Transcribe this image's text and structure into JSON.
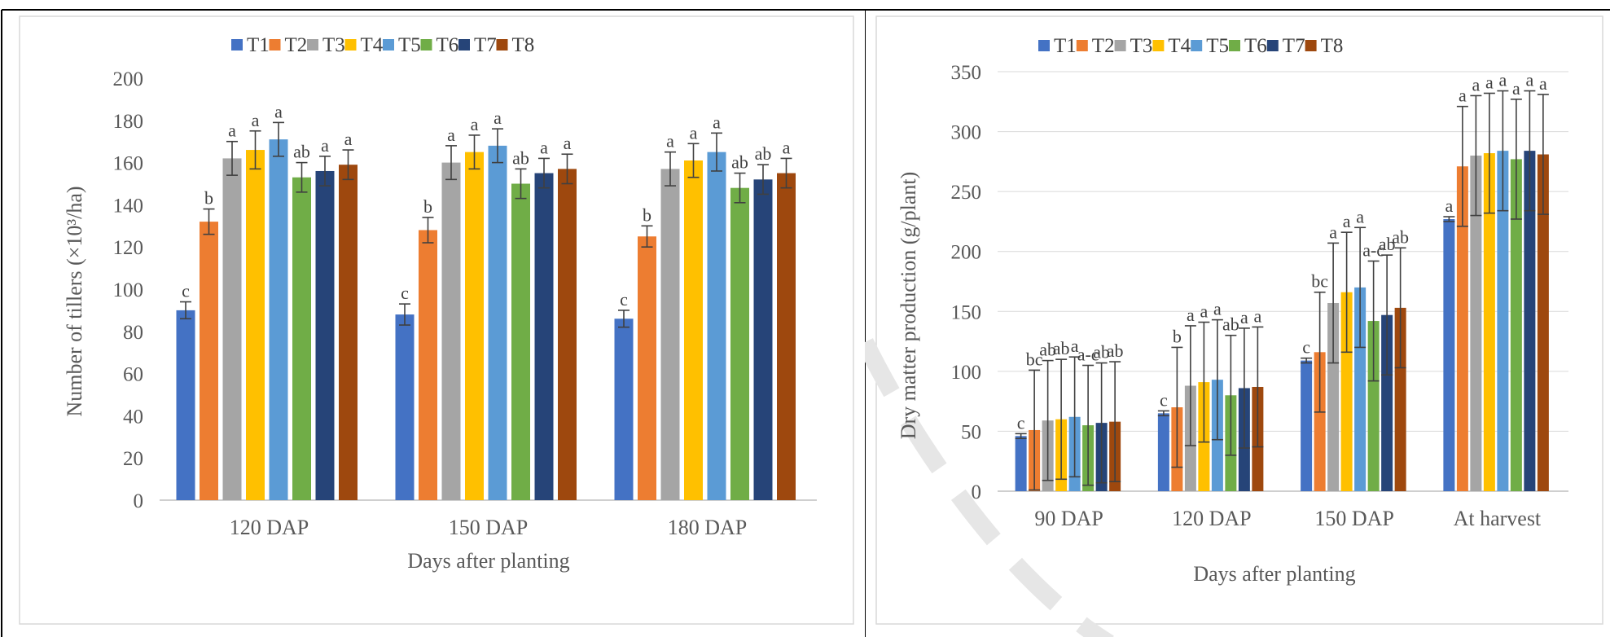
{
  "chart_data": [
    {
      "type": "bar",
      "title": "",
      "categories": [
        "120 DAP",
        "150 DAP",
        "180 DAP"
      ],
      "xlabel": "Days after planting",
      "ylabel": "Number of tillers (×10³/ha)",
      "ylim": [
        0,
        200
      ],
      "yticks": [
        "0",
        "20",
        "40",
        "60",
        "80",
        "100",
        "120",
        "140",
        "160",
        "180",
        "200"
      ],
      "grid": false,
      "legend": "top",
      "series": [
        {
          "name": "T1",
          "color": "#4472c4",
          "values": [
            90,
            88,
            86
          ],
          "errors": [
            4,
            5,
            4
          ],
          "labels": [
            "c",
            "c",
            "c"
          ]
        },
        {
          "name": "T2",
          "color": "#ed7d31",
          "values": [
            132,
            128,
            125
          ],
          "errors": [
            6,
            6,
            5
          ],
          "labels": [
            "b",
            "b",
            "b"
          ]
        },
        {
          "name": "T3",
          "color": "#a5a5a5",
          "values": [
            162,
            160,
            157
          ],
          "errors": [
            8,
            8,
            8
          ],
          "labels": [
            "a",
            "a",
            "a"
          ]
        },
        {
          "name": "T4",
          "color": "#ffc000",
          "values": [
            166,
            165,
            161
          ],
          "errors": [
            9,
            8,
            8
          ],
          "labels": [
            "a",
            "a",
            "a"
          ]
        },
        {
          "name": "T5",
          "color": "#5b9bd5",
          "values": [
            171,
            168,
            165
          ],
          "errors": [
            8,
            8,
            9
          ],
          "labels": [
            "a",
            "a",
            "a"
          ]
        },
        {
          "name": "T6",
          "color": "#70ad47",
          "values": [
            153,
            150,
            148
          ],
          "errors": [
            7,
            7,
            7
          ],
          "labels": [
            "ab",
            "ab",
            "ab"
          ]
        },
        {
          "name": "T7",
          "color": "#264478",
          "values": [
            156,
            155,
            152
          ],
          "errors": [
            7,
            7,
            7
          ],
          "labels": [
            "a",
            "a",
            "ab"
          ]
        },
        {
          "name": "T8",
          "color": "#9e480e",
          "values": [
            159,
            157,
            155
          ],
          "errors": [
            7,
            7,
            7
          ],
          "labels": [
            "a",
            "a",
            "a"
          ]
        }
      ]
    },
    {
      "type": "bar",
      "title": "",
      "categories": [
        "90 DAP",
        "120 DAP",
        "150 DAP",
        "At harvest"
      ],
      "xlabel": "Days after planting",
      "ylabel": "Dry matter production (g/plant)",
      "ylim": [
        0,
        350
      ],
      "yticks": [
        "0",
        "50",
        "100",
        "150",
        "200",
        "250",
        "300",
        "350"
      ],
      "grid": true,
      "legend": "top",
      "series": [
        {
          "name": "T1",
          "color": "#4472c4",
          "values": [
            46,
            65,
            109,
            227
          ],
          "errors": [
            2,
            2,
            2,
            2
          ],
          "labels": [
            "c",
            "c",
            "c",
            "a"
          ]
        },
        {
          "name": "T2",
          "color": "#ed7d31",
          "values": [
            51,
            70,
            116,
            271
          ],
          "errors": [
            50,
            50,
            50,
            50
          ],
          "labels": [
            "bc",
            "b",
            "bc",
            "a"
          ]
        },
        {
          "name": "T3",
          "color": "#a5a5a5",
          "values": [
            59,
            88,
            157,
            280
          ],
          "errors": [
            50,
            50,
            50,
            50
          ],
          "labels": [
            "ab",
            "a",
            "a",
            "a"
          ]
        },
        {
          "name": "T4",
          "color": "#ffc000",
          "values": [
            60,
            91,
            166,
            282
          ],
          "errors": [
            50,
            50,
            50,
            50
          ],
          "labels": [
            "ab",
            "a",
            "a",
            "a"
          ]
        },
        {
          "name": "T5",
          "color": "#5b9bd5",
          "values": [
            62,
            93,
            170,
            284
          ],
          "errors": [
            50,
            50,
            50,
            50
          ],
          "labels": [
            "a",
            "a",
            "a",
            "a"
          ]
        },
        {
          "name": "T6",
          "color": "#70ad47",
          "values": [
            55,
            80,
            142,
            277
          ],
          "errors": [
            50,
            50,
            50,
            50
          ],
          "labels": [
            "a-c",
            "ab",
            "a-c",
            "a"
          ]
        },
        {
          "name": "T7",
          "color": "#264478",
          "values": [
            57,
            86,
            147,
            284
          ],
          "errors": [
            50,
            50,
            50,
            50
          ],
          "labels": [
            "ab",
            "a",
            "ab",
            "a"
          ]
        },
        {
          "name": "T8",
          "color": "#9e480e",
          "values": [
            58,
            87,
            153,
            281
          ],
          "errors": [
            50,
            50,
            50,
            50
          ],
          "labels": [
            "ab",
            "a",
            "ab",
            "a"
          ]
        }
      ]
    }
  ]
}
